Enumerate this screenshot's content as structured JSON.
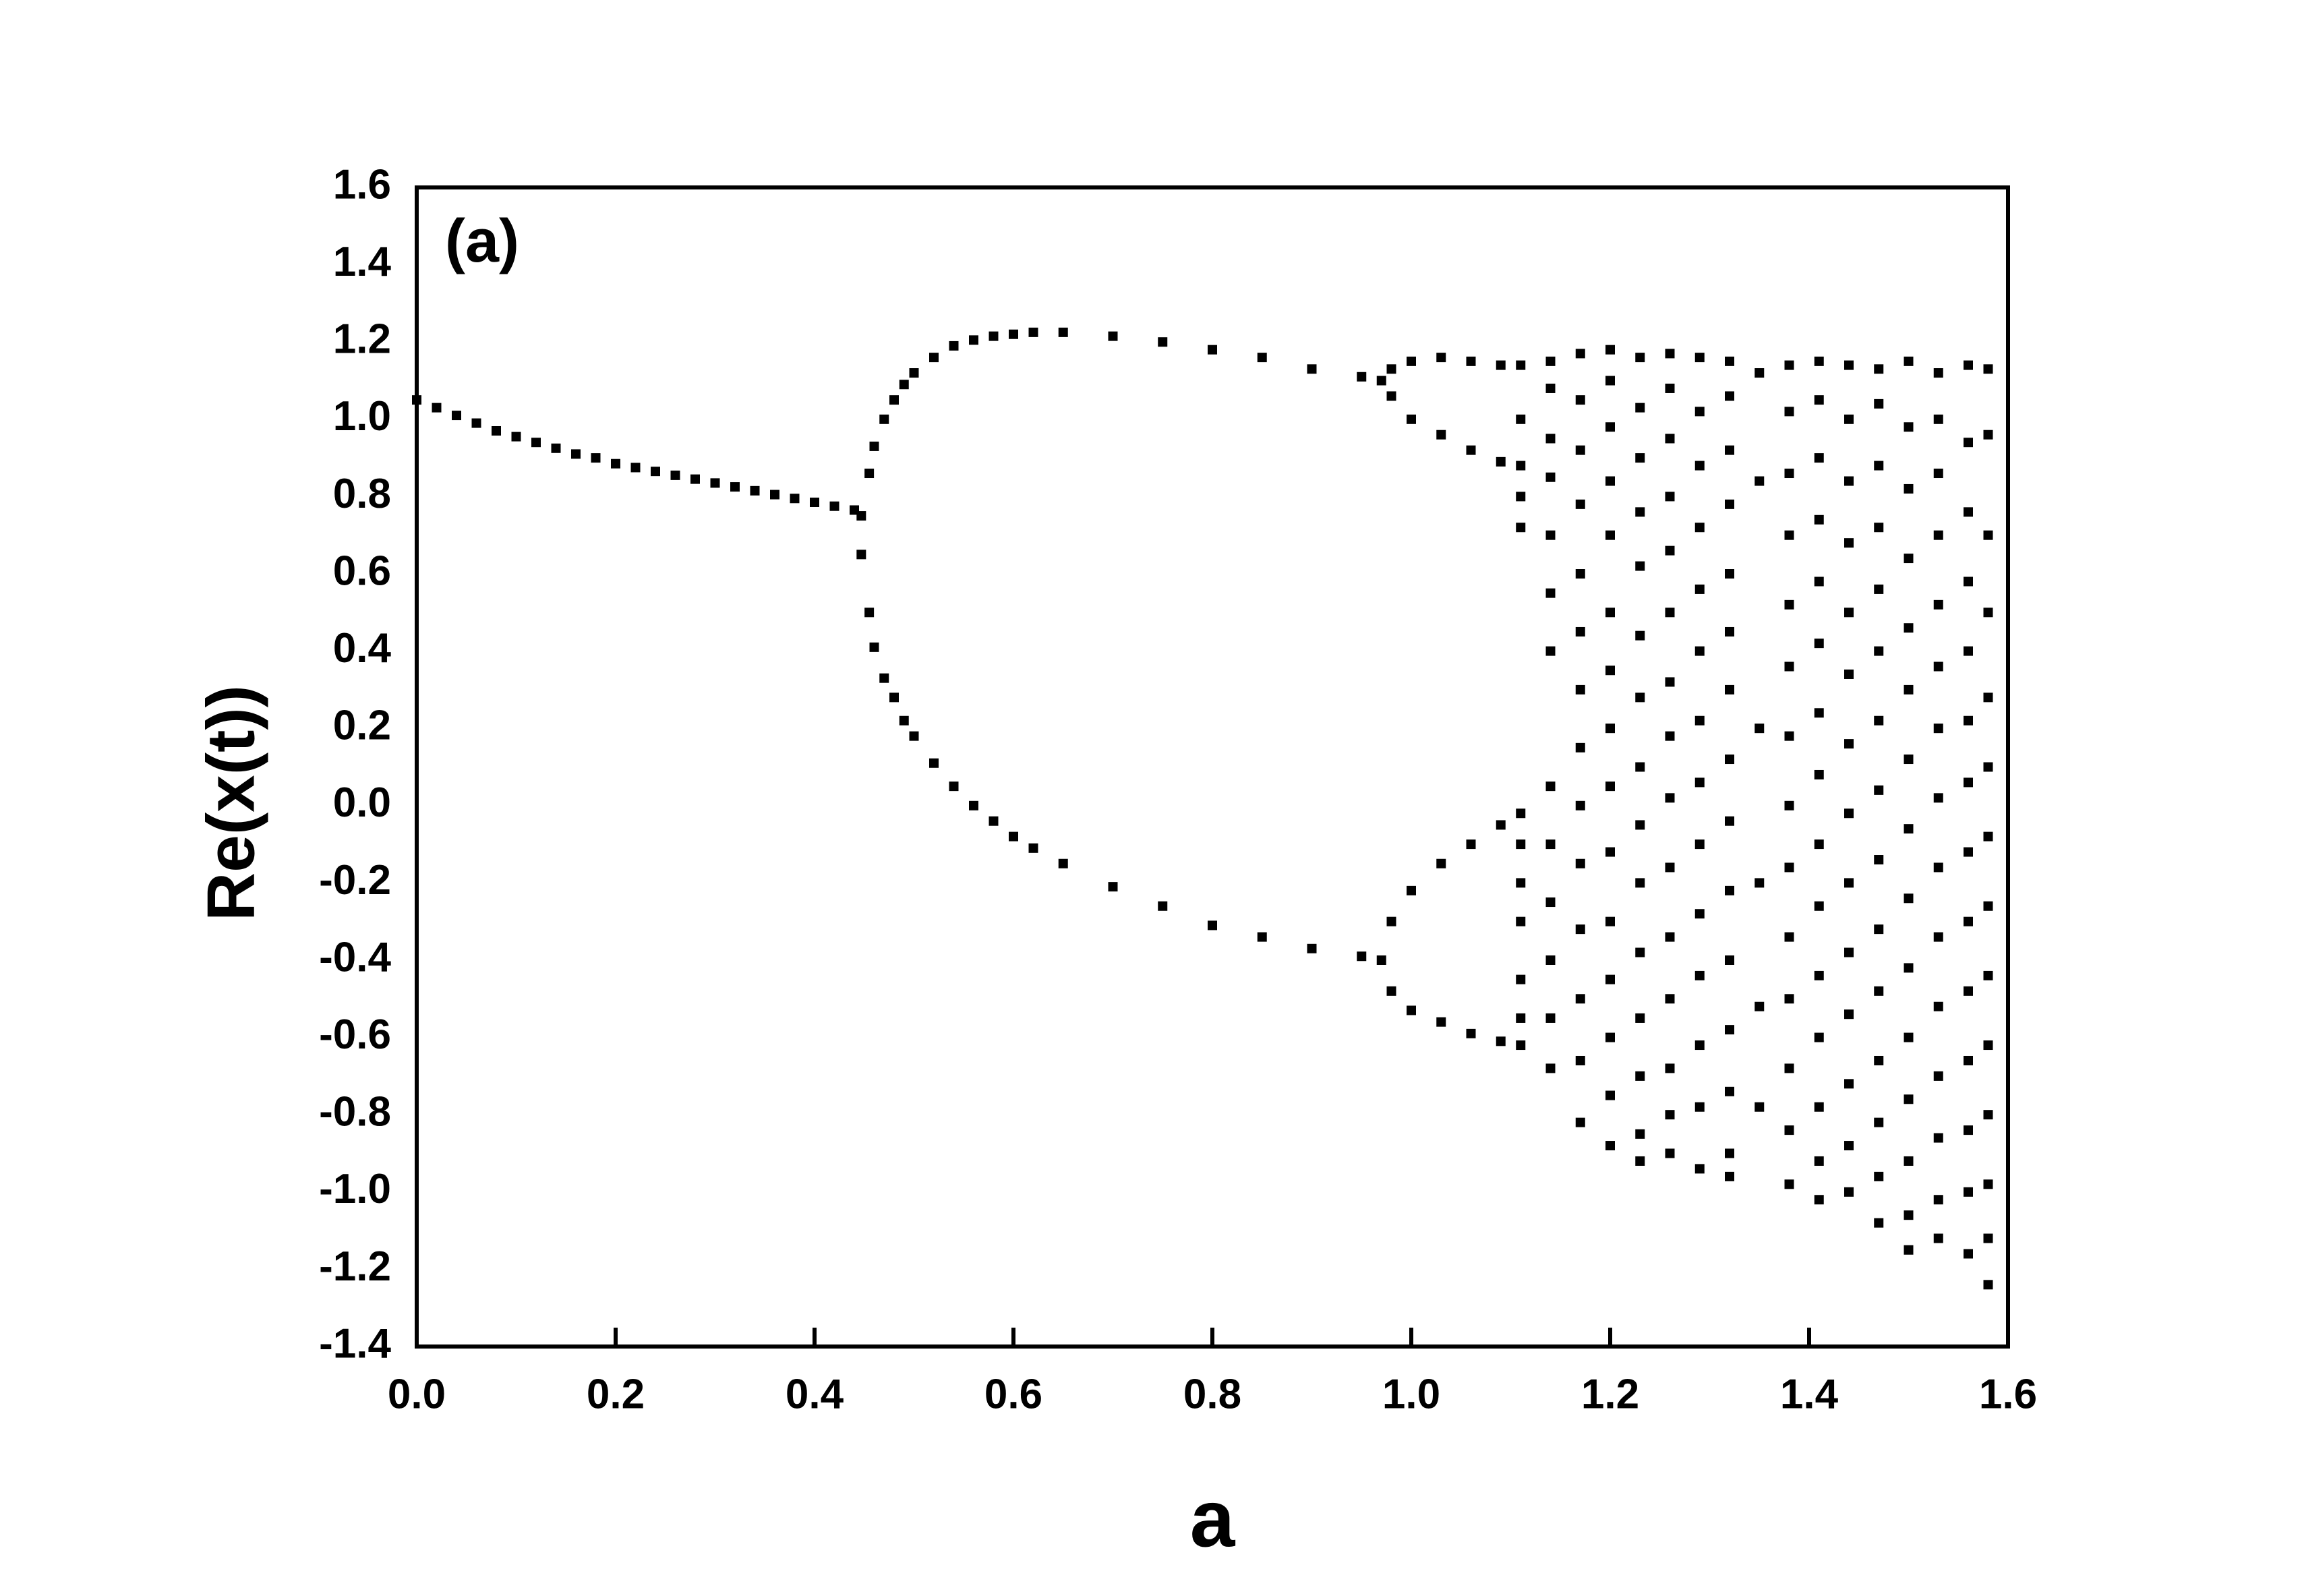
{
  "chart_data": {
    "type": "scatter",
    "annotation": "(a)",
    "xlabel": "a",
    "ylabel": "Re(x(t))",
    "color": "#000000",
    "xlim": [
      0,
      1.6
    ],
    "ylim": [
      -1.4,
      1.6
    ],
    "xticks": [
      {
        "value": 0,
        "label": "0.0"
      },
      0.2,
      0.4,
      0.6,
      0.8,
      {
        "value": 1,
        "label": "1.0"
      },
      1.2,
      1.4,
      1.6
    ],
    "yticks": [
      -1.4,
      -1.2,
      {
        "value": -1,
        "label": "-1.0"
      },
      -0.8,
      -0.6,
      -0.4,
      -0.2,
      {
        "value": 0,
        "label": "0.0"
      },
      0.2,
      0.4,
      0.6,
      0.8,
      {
        "value": 1,
        "label": "1.0"
      },
      1.2,
      1.4,
      1.6
    ],
    "x": [
      0,
      0.02,
      0.04,
      0.06,
      0.08,
      0.1,
      0.12,
      0.14,
      0.16,
      0.18,
      0.2,
      0.22,
      0.24,
      0.26,
      0.28,
      0.3,
      0.32,
      0.34,
      0.36,
      0.38,
      0.4,
      0.42,
      0.44,
      0.447,
      0.447,
      0.455,
      0.455,
      0.46,
      0.46,
      0.47,
      0.47,
      0.48,
      0.48,
      0.49,
      0.49,
      0.5,
      0.5,
      0.52,
      0.52,
      0.54,
      0.54,
      0.56,
      0.56,
      0.58,
      0.58,
      0.6,
      0.6,
      0.62,
      0.62,
      0.65,
      0.65,
      0.7,
      0.7,
      0.75,
      0.75,
      0.8,
      0.8,
      0.85,
      0.85,
      0.9,
      0.9,
      0.95,
      0.95,
      0.97,
      0.97,
      0.98,
      0.98,
      0.98,
      0.98,
      1,
      1,
      1,
      1,
      1.03,
      1.03,
      1.03,
      1.03,
      1.06,
      1.06,
      1.06,
      1.06,
      1.09,
      1.09,
      1.09,
      1.09,
      1.11,
      1.11,
      1.11,
      1.11,
      1.11,
      1.11,
      1.11,
      1.11,
      1.11,
      1.11,
      1.11,
      1.11,
      1.14,
      1.14,
      1.14,
      1.14,
      1.14,
      1.14,
      1.14,
      1.14,
      1.14,
      1.14,
      1.14,
      1.14,
      1.14,
      1.17,
      1.17,
      1.17,
      1.17,
      1.17,
      1.17,
      1.17,
      1.17,
      1.17,
      1.17,
      1.17,
      1.17,
      1.17,
      1.17,
      1.2,
      1.2,
      1.2,
      1.2,
      1.2,
      1.2,
      1.2,
      1.2,
      1.2,
      1.2,
      1.2,
      1.2,
      1.2,
      1.2,
      1.2,
      1.23,
      1.23,
      1.23,
      1.23,
      1.23,
      1.23,
      1.23,
      1.23,
      1.23,
      1.23,
      1.23,
      1.23,
      1.23,
      1.23,
      1.23,
      1.26,
      1.26,
      1.26,
      1.26,
      1.26,
      1.26,
      1.26,
      1.26,
      1.26,
      1.26,
      1.26,
      1.26,
      1.26,
      1.26,
      1.26,
      1.29,
      1.29,
      1.29,
      1.29,
      1.29,
      1.29,
      1.29,
      1.29,
      1.29,
      1.29,
      1.29,
      1.29,
      1.29,
      1.29,
      1.32,
      1.32,
      1.32,
      1.32,
      1.32,
      1.32,
      1.32,
      1.32,
      1.32,
      1.32,
      1.32,
      1.32,
      1.32,
      1.32,
      1.32,
      1.35,
      1.35,
      1.35,
      1.35,
      1.35,
      1.35,
      1.38,
      1.38,
      1.38,
      1.38,
      1.38,
      1.38,
      1.38,
      1.38,
      1.38,
      1.38,
      1.38,
      1.38,
      1.38,
      1.38,
      1.41,
      1.41,
      1.41,
      1.41,
      1.41,
      1.41,
      1.41,
      1.41,
      1.41,
      1.41,
      1.41,
      1.41,
      1.41,
      1.41,
      1.41,
      1.44,
      1.44,
      1.44,
      1.44,
      1.44,
      1.44,
      1.44,
      1.44,
      1.44,
      1.44,
      1.44,
      1.44,
      1.44,
      1.44,
      1.47,
      1.47,
      1.47,
      1.47,
      1.47,
      1.47,
      1.47,
      1.47,
      1.47,
      1.47,
      1.47,
      1.47,
      1.47,
      1.47,
      1.47,
      1.5,
      1.5,
      1.5,
      1.5,
      1.5,
      1.5,
      1.5,
      1.5,
      1.5,
      1.5,
      1.5,
      1.5,
      1.5,
      1.5,
      1.5,
      1.53,
      1.53,
      1.53,
      1.53,
      1.53,
      1.53,
      1.53,
      1.53,
      1.53,
      1.53,
      1.53,
      1.53,
      1.53,
      1.53,
      1.53,
      1.56,
      1.56,
      1.56,
      1.56,
      1.56,
      1.56,
      1.56,
      1.56,
      1.56,
      1.56,
      1.56,
      1.56,
      1.56,
      1.56,
      1.58,
      1.58,
      1.58,
      1.58,
      1.58,
      1.58,
      1.58,
      1.58,
      1.58,
      1.58,
      1.58,
      1.58,
      1.58,
      1.58
    ],
    "y": [
      1.05,
      1.03,
      1.01,
      0.99,
      0.97,
      0.955,
      0.94,
      0.925,
      0.91,
      0.9,
      0.885,
      0.875,
      0.865,
      0.855,
      0.845,
      0.835,
      0.825,
      0.815,
      0.805,
      0.795,
      0.785,
      0.775,
      0.765,
      0.75,
      0.65,
      0.86,
      0.5,
      0.93,
      0.41,
      1,
      0.33,
      1.05,
      0.28,
      1.09,
      0.22,
      1.12,
      0.18,
      1.16,
      0.11,
      1.19,
      0.05,
      1.205,
      0,
      1.215,
      -0.04,
      1.22,
      -0.08,
      1.225,
      -0.11,
      1.225,
      -0.15,
      1.215,
      -0.21,
      1.2,
      -0.26,
      1.18,
      -0.31,
      1.16,
      -0.34,
      1.13,
      -0.37,
      1.11,
      -0.39,
      1.1,
      -0.4,
      1.13,
      1.06,
      -0.3,
      -0.48,
      1.15,
      1,
      -0.22,
      -0.53,
      1.16,
      0.96,
      -0.15,
      -0.56,
      1.15,
      0.92,
      -0.1,
      -0.59,
      1.14,
      0.89,
      -0.05,
      -0.61,
      1.14,
      1,
      0.88,
      0.8,
      0.72,
      -0.02,
      -0.1,
      -0.2,
      -0.3,
      -0.45,
      -0.55,
      -0.62,
      1.15,
      1.08,
      0.95,
      0.85,
      0.7,
      0.55,
      0.4,
      0.05,
      -0.1,
      -0.25,
      -0.4,
      -0.55,
      -0.68,
      1.17,
      1.05,
      0.92,
      0.78,
      0.6,
      0.45,
      0.3,
      0.15,
      0,
      -0.15,
      -0.32,
      -0.5,
      -0.66,
      -0.82,
      1.18,
      1.1,
      0.98,
      0.84,
      0.7,
      0.5,
      0.35,
      0.2,
      0.05,
      -0.12,
      -0.3,
      -0.45,
      -0.6,
      -0.75,
      -0.88,
      1.16,
      1.03,
      0.9,
      0.76,
      0.62,
      0.44,
      0.28,
      0.1,
      -0.05,
      -0.2,
      -0.38,
      -0.55,
      -0.7,
      -0.85,
      -0.92,
      1.17,
      1.08,
      0.95,
      0.8,
      0.66,
      0.5,
      0.32,
      0.18,
      0.02,
      -0.16,
      -0.34,
      -0.5,
      -0.68,
      -0.8,
      -0.9,
      1.16,
      1.02,
      0.88,
      0.72,
      0.56,
      0.4,
      0.22,
      0.06,
      -0.1,
      -0.28,
      -0.44,
      -0.62,
      -0.78,
      -0.94,
      1.15,
      1.06,
      0.92,
      0.78,
      0.6,
      0.45,
      0.3,
      0.12,
      -0.04,
      -0.22,
      -0.4,
      -0.58,
      -0.74,
      -0.9,
      -0.96,
      1.12,
      0.84,
      0.2,
      -0.2,
      -0.52,
      -0.78,
      1.14,
      1.02,
      0.86,
      0.7,
      0.52,
      0.36,
      0.18,
      0,
      -0.16,
      -0.34,
      -0.5,
      -0.68,
      -0.84,
      -0.98,
      1.15,
      1.05,
      0.9,
      0.74,
      0.58,
      0.42,
      0.24,
      0.08,
      -0.1,
      -0.26,
      -0.44,
      -0.6,
      -0.78,
      -0.92,
      -1.02,
      1.14,
      1,
      0.84,
      0.68,
      0.5,
      0.34,
      0.16,
      -0.02,
      -0.2,
      -0.38,
      -0.54,
      -0.72,
      -0.88,
      -1,
      1.13,
      1.04,
      0.88,
      0.72,
      0.56,
      0.4,
      0.22,
      0.04,
      -0.14,
      -0.32,
      -0.48,
      -0.66,
      -0.82,
      -0.96,
      -1.08,
      1.15,
      0.98,
      0.82,
      0.64,
      0.46,
      0.3,
      0.12,
      -0.06,
      -0.24,
      -0.42,
      -0.6,
      -0.76,
      -0.92,
      -1.06,
      -1.15,
      1.12,
      1,
      0.86,
      0.7,
      0.52,
      0.36,
      0.2,
      0.02,
      -0.16,
      -0.34,
      -0.52,
      -0.7,
      -0.86,
      -1.02,
      -1.12,
      1.14,
      0.94,
      0.76,
      0.58,
      0.4,
      0.22,
      0.06,
      -0.12,
      -0.3,
      -0.48,
      -0.66,
      -0.84,
      -1,
      -1.16,
      1.13,
      0.96,
      0.7,
      0.5,
      0.28,
      0.1,
      -0.08,
      -0.26,
      -0.44,
      -0.62,
      -0.8,
      -0.98,
      -1.12,
      -1.24
    ]
  }
}
